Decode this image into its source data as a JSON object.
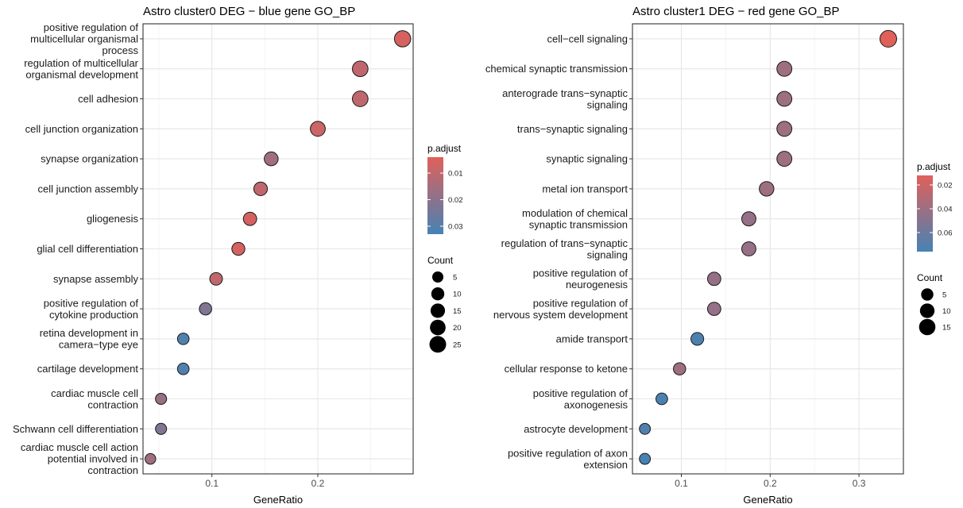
{
  "chart_data": [
    {
      "type": "scatter",
      "title": "Astro cluster0 DEG - blue gene GO_BP",
      "xlabel": "GeneRatio",
      "ylabel": "",
      "xlim": [
        0.035,
        0.29
      ],
      "xticks": [
        0.1,
        0.2
      ],
      "xtick_labels": [
        "0.1",
        "0.2"
      ],
      "grid": true,
      "legend_placement": "right",
      "terms": [
        {
          "label": [
            "positive regulation of",
            "multicellular organismal",
            "process"
          ],
          "x": 0.28,
          "count": 23,
          "p_adjust": 0.006
        },
        {
          "label": [
            "regulation of multicellular",
            "organismal development"
          ],
          "x": 0.24,
          "count": 20,
          "p_adjust": 0.01
        },
        {
          "label": [
            "cell adhesion"
          ],
          "x": 0.24,
          "count": 20,
          "p_adjust": 0.01
        },
        {
          "label": [
            "cell junction organization"
          ],
          "x": 0.2,
          "count": 17,
          "p_adjust": 0.008
        },
        {
          "label": [
            "synapse organization"
          ],
          "x": 0.156,
          "count": 13,
          "p_adjust": 0.016
        },
        {
          "label": [
            "cell junction assembly"
          ],
          "x": 0.146,
          "count": 12,
          "p_adjust": 0.01
        },
        {
          "label": [
            "gliogenesis"
          ],
          "x": 0.136,
          "count": 11,
          "p_adjust": 0.006
        },
        {
          "label": [
            "glial cell differentiation"
          ],
          "x": 0.125,
          "count": 10,
          "p_adjust": 0.006
        },
        {
          "label": [
            "synapse assembly"
          ],
          "x": 0.104,
          "count": 9,
          "p_adjust": 0.01
        },
        {
          "label": [
            "positive regulation of",
            "cytokine production"
          ],
          "x": 0.094,
          "count": 8,
          "p_adjust": 0.022
        },
        {
          "label": [
            "retina development in",
            "camera-type eye"
          ],
          "x": 0.073,
          "count": 6,
          "p_adjust": 0.031
        },
        {
          "label": [
            "cartilage development"
          ],
          "x": 0.073,
          "count": 6,
          "p_adjust": 0.031
        },
        {
          "label": [
            "cardiac muscle cell",
            "contraction"
          ],
          "x": 0.052,
          "count": 5,
          "p_adjust": 0.018
        },
        {
          "label": [
            "Schwann cell differentiation"
          ],
          "x": 0.052,
          "count": 5,
          "p_adjust": 0.022
        },
        {
          "label": [
            "cardiac muscle cell action",
            "potential involved in",
            "contraction"
          ],
          "x": 0.042,
          "count": 4,
          "p_adjust": 0.016
        }
      ],
      "color_legend": {
        "title": "p.adjust",
        "ticks": [
          0.01,
          0.02,
          0.03
        ],
        "tick_labels": [
          "0.01",
          "0.02",
          "0.03"
        ],
        "range": [
          0.004,
          0.033
        ],
        "low_color": "#e0605a",
        "high_color": "#4682b4"
      },
      "size_legend": {
        "title": "Count",
        "values": [
          5,
          10,
          15,
          20,
          25
        ],
        "labels": [
          "5",
          "10",
          "15",
          "20",
          "25"
        ],
        "count_max": 25
      }
    },
    {
      "type": "scatter",
      "title": "Astro cluster1 DEG - red gene GO_BP",
      "xlabel": "GeneRatio",
      "ylabel": "",
      "xlim": [
        0.045,
        0.35
      ],
      "xticks": [
        0.1,
        0.2,
        0.3
      ],
      "xtick_labels": [
        "0.1",
        "0.2",
        "0.3"
      ],
      "grid": true,
      "legend_placement": "right",
      "terms": [
        {
          "label": [
            "cell-cell signaling"
          ],
          "x": 0.333,
          "count": 16,
          "p_adjust": 0.012
        },
        {
          "label": [
            "chemical synaptic transmission"
          ],
          "x": 0.216,
          "count": 11,
          "p_adjust": 0.04
        },
        {
          "label": [
            "anterograde trans-synaptic",
            "signaling"
          ],
          "x": 0.216,
          "count": 11,
          "p_adjust": 0.04
        },
        {
          "label": [
            "trans-synaptic signaling"
          ],
          "x": 0.216,
          "count": 11,
          "p_adjust": 0.04
        },
        {
          "label": [
            "synaptic signaling"
          ],
          "x": 0.216,
          "count": 11,
          "p_adjust": 0.04
        },
        {
          "label": [
            "metal ion transport"
          ],
          "x": 0.196,
          "count": 10,
          "p_adjust": 0.04
        },
        {
          "label": [
            "modulation of chemical",
            "synaptic transmission"
          ],
          "x": 0.176,
          "count": 9,
          "p_adjust": 0.043
        },
        {
          "label": [
            "regulation of trans-synaptic",
            "signaling"
          ],
          "x": 0.176,
          "count": 9,
          "p_adjust": 0.043
        },
        {
          "label": [
            "positive regulation of",
            "neurogenesis"
          ],
          "x": 0.137,
          "count": 7,
          "p_adjust": 0.043
        },
        {
          "label": [
            "positive regulation of",
            "nervous system development"
          ],
          "x": 0.137,
          "count": 7,
          "p_adjust": 0.043
        },
        {
          "label": [
            "amide transport"
          ],
          "x": 0.118,
          "count": 6,
          "p_adjust": 0.074
        },
        {
          "label": [
            "cellular response to ketone"
          ],
          "x": 0.098,
          "count": 5,
          "p_adjust": 0.04
        },
        {
          "label": [
            "positive regulation of",
            "axonogenesis"
          ],
          "x": 0.078,
          "count": 4,
          "p_adjust": 0.074
        },
        {
          "label": [
            "astrocyte development"
          ],
          "x": 0.059,
          "count": 3,
          "p_adjust": 0.072
        },
        {
          "label": [
            "positive regulation of axon",
            "extension"
          ],
          "x": 0.059,
          "count": 3,
          "p_adjust": 0.076
        }
      ],
      "color_legend": {
        "title": "p.adjust",
        "ticks": [
          0.02,
          0.04,
          0.06
        ],
        "tick_labels": [
          "0.02",
          "0.04",
          "0.06"
        ],
        "range": [
          0.012,
          0.076
        ],
        "low_color": "#e0605a",
        "high_color": "#4682b4"
      },
      "size_legend": {
        "title": "Count",
        "values": [
          5,
          10,
          15
        ],
        "labels": [
          "5",
          "10",
          "15"
        ],
        "count_max": 16
      }
    }
  ]
}
